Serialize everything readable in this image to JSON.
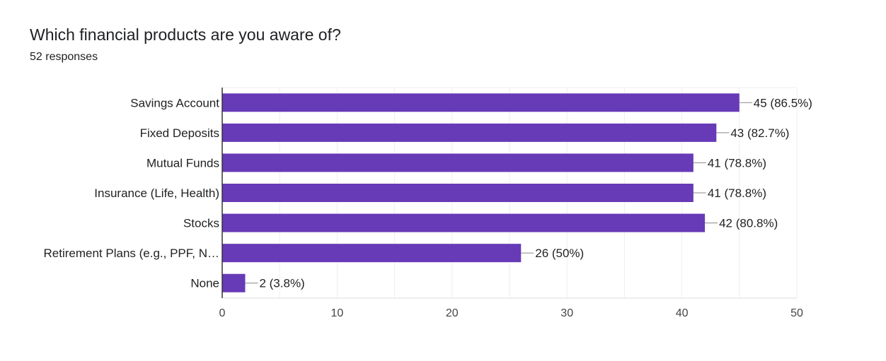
{
  "question": {
    "title": "Which financial products are you aware of?",
    "responses": "52 responses"
  },
  "colors": {
    "bar": "#673ab7",
    "grid": "#eeeeee",
    "axis": "#333333"
  },
  "chart_data": {
    "type": "bar",
    "orientation": "horizontal",
    "title": "Which financial products are you aware of?",
    "xlabel": "",
    "ylabel": "",
    "xlim": [
      0,
      50
    ],
    "xticks": [
      0,
      10,
      20,
      30,
      40,
      50
    ],
    "categories": [
      "Savings Account",
      "Fixed Deposits",
      "Mutual Funds",
      "Insurance (Life, Health)",
      "Stocks",
      "Retirement Plans (e.g., PPF, N…",
      "None"
    ],
    "values": [
      45,
      43,
      41,
      41,
      42,
      26,
      2
    ],
    "data_labels": [
      "45 (86.5%)",
      "43 (82.7%)",
      "41 (78.8%)",
      "41 (78.8%)",
      "42 (80.8%)",
      "26 (50%)",
      "2 (3.8%)"
    ],
    "grid": true,
    "legend": "none"
  }
}
